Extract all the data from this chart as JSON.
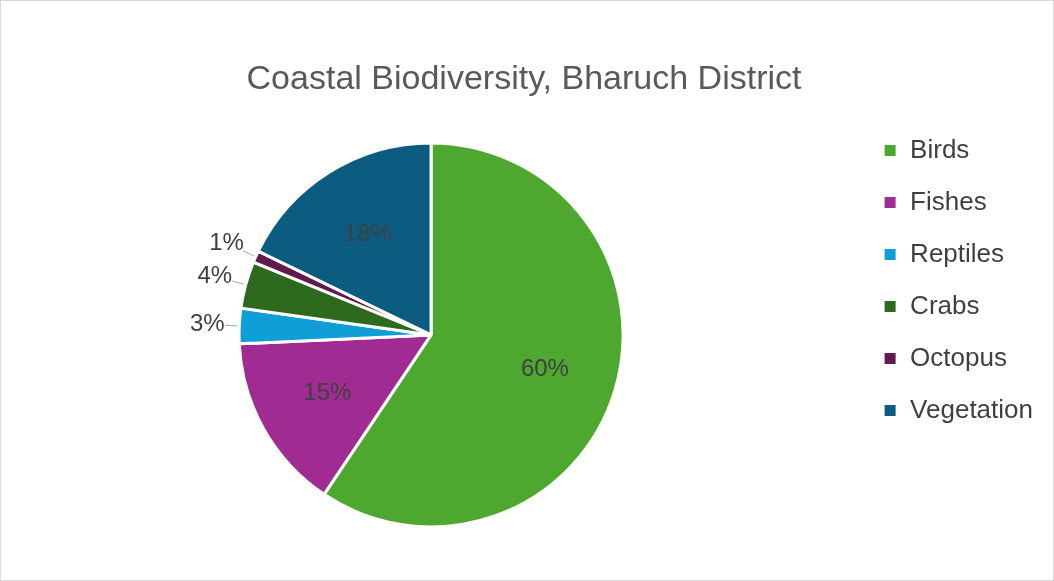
{
  "chart_data": {
    "type": "pie",
    "title": "Coastal Biodiversity, Bharuch District",
    "categories": [
      "Birds",
      "Fishes",
      "Reptiles",
      "Crabs",
      "Octopus",
      "Vegetation"
    ],
    "values": [
      60,
      15,
      3,
      4,
      1,
      18
    ],
    "colors": [
      "#4ea72e",
      "#a02b93",
      "#0f9ed5",
      "#2e6a1e",
      "#5f1a4f",
      "#0b5c80"
    ],
    "value_labels": [
      "60%",
      "15%",
      "3%",
      "4%",
      "1%",
      "18%"
    ],
    "legend": "right"
  }
}
